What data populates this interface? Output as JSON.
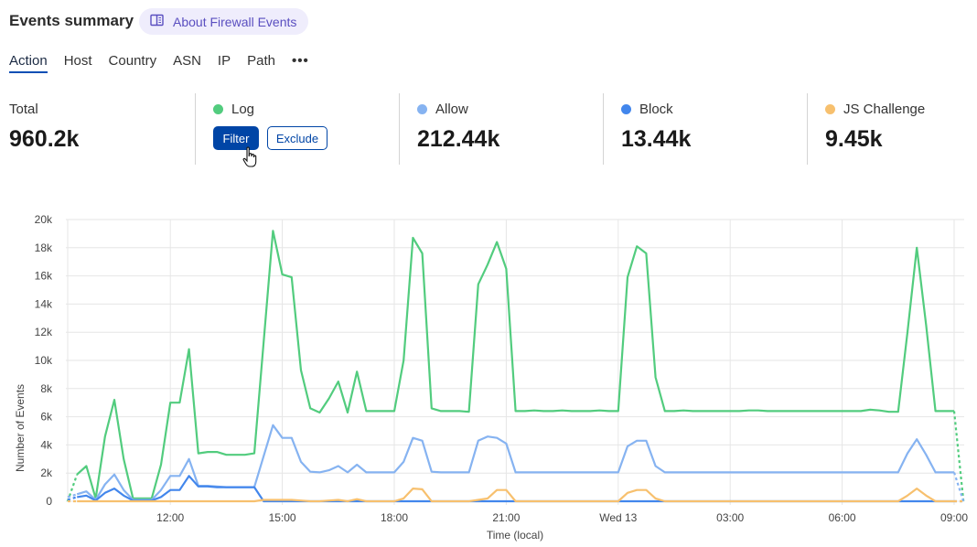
{
  "header": {
    "title": "Events summary",
    "about_label": "About Firewall Events",
    "about_icon": "book-icon"
  },
  "tabs": [
    {
      "label": "Action",
      "active": true
    },
    {
      "label": "Host"
    },
    {
      "label": "Country"
    },
    {
      "label": "ASN"
    },
    {
      "label": "IP"
    },
    {
      "label": "Path"
    },
    {
      "label": "•••"
    }
  ],
  "stats": {
    "total": {
      "label": "Total",
      "value": "960.2k"
    },
    "log": {
      "label": "Log",
      "color": "#52cc7e",
      "filter_label": "Filter",
      "exclude_label": "Exclude"
    },
    "allow": {
      "label": "Allow",
      "value": "212.44k",
      "color": "#86b3f1"
    },
    "block": {
      "label": "Block",
      "value": "13.44k",
      "color": "#4286ec"
    },
    "js": {
      "label": "JS Challenge",
      "value": "9.45k",
      "color": "#f7c06e"
    }
  },
  "chart_data": {
    "type": "line",
    "xlabel": "Time (local)",
    "ylabel": "Number of Events",
    "ylim": [
      0,
      20000
    ],
    "yticks": [
      "0",
      "2k",
      "4k",
      "6k",
      "8k",
      "10k",
      "12k",
      "14k",
      "16k",
      "18k",
      "20k"
    ],
    "xticks": [
      {
        "at": "Tue 12:00",
        "label": "12:00"
      },
      {
        "at": "Tue 15:00",
        "label": "15:00"
      },
      {
        "at": "Tue 18:00",
        "label": "18:00"
      },
      {
        "at": "Tue 21:00",
        "label": "21:00"
      },
      {
        "at": "Wed 00:00",
        "label": "Wed 13"
      },
      {
        "at": "Wed 03:00",
        "label": "03:00"
      },
      {
        "at": "Wed 06:00",
        "label": "06:00"
      },
      {
        "at": "Wed 09:00",
        "label": "09:00"
      }
    ],
    "grid": true,
    "x": [
      "Tue 09:15",
      "Tue 09:30",
      "Tue 09:45",
      "Tue 10:00",
      "Tue 10:15",
      "Tue 10:30",
      "Tue 10:45",
      "Tue 11:00",
      "Tue 11:15",
      "Tue 11:30",
      "Tue 11:45",
      "Tue 12:00",
      "Tue 12:15",
      "Tue 12:30",
      "Tue 12:45",
      "Tue 13:00",
      "Tue 13:15",
      "Tue 13:30",
      "Tue 13:45",
      "Tue 14:00",
      "Tue 14:15",
      "Tue 14:30",
      "Tue 14:45",
      "Tue 15:00",
      "Tue 15:15",
      "Tue 15:30",
      "Tue 15:45",
      "Tue 16:00",
      "Tue 16:15",
      "Tue 16:30",
      "Tue 16:45",
      "Tue 17:00",
      "Tue 17:15",
      "Tue 17:30",
      "Tue 17:45",
      "Tue 18:00",
      "Tue 18:15",
      "Tue 18:30",
      "Tue 18:45",
      "Tue 19:00",
      "Tue 19:15",
      "Tue 19:30",
      "Tue 19:45",
      "Tue 20:00",
      "Tue 20:15",
      "Tue 20:30",
      "Tue 20:45",
      "Tue 21:00",
      "Tue 21:15",
      "Tue 21:30",
      "Tue 21:45",
      "Tue 22:00",
      "Tue 22:15",
      "Tue 22:30",
      "Tue 22:45",
      "Tue 23:00",
      "Tue 23:15",
      "Tue 23:30",
      "Tue 23:45",
      "Wed 00:00",
      "Wed 00:15",
      "Wed 00:30",
      "Wed 00:45",
      "Wed 01:00",
      "Wed 01:15",
      "Wed 01:30",
      "Wed 01:45",
      "Wed 02:00",
      "Wed 02:15",
      "Wed 02:30",
      "Wed 02:45",
      "Wed 03:00",
      "Wed 03:15",
      "Wed 03:30",
      "Wed 03:45",
      "Wed 04:00",
      "Wed 04:15",
      "Wed 04:30",
      "Wed 04:45",
      "Wed 05:00",
      "Wed 05:15",
      "Wed 05:30",
      "Wed 05:45",
      "Wed 06:00",
      "Wed 06:15",
      "Wed 06:30",
      "Wed 06:45",
      "Wed 07:00",
      "Wed 07:15",
      "Wed 07:30",
      "Wed 07:45",
      "Wed 08:00",
      "Wed 08:15",
      "Wed 08:30",
      "Wed 08:45",
      "Wed 09:00",
      "Wed 09:15"
    ],
    "series": [
      {
        "name": "Log",
        "color": "#52cc7e",
        "values": [
          0,
          1900,
          2500,
          200,
          4600,
          7200,
          3000,
          200,
          200,
          200,
          2600,
          7000,
          7000,
          10800,
          3400,
          3500,
          3500,
          3300,
          3300,
          3300,
          3400,
          11300,
          19200,
          16100,
          15900,
          9300,
          6600,
          6300,
          7300,
          8500,
          6300,
          9200,
          6400,
          6400,
          6400,
          6400,
          10000,
          18700,
          17600,
          6600,
          6400,
          6400,
          6400,
          6350,
          15400,
          16800,
          18400,
          16500,
          6400,
          6400,
          6450,
          6400,
          6400,
          6450,
          6400,
          6400,
          6400,
          6450,
          6400,
          6400,
          15900,
          18100,
          17600,
          8800,
          6400,
          6400,
          6450,
          6400,
          6400,
          6400,
          6400,
          6400,
          6400,
          6450,
          6450,
          6400,
          6400,
          6400,
          6400,
          6400,
          6400,
          6400,
          6400,
          6400,
          6400,
          6400,
          6500,
          6450,
          6350,
          6350,
          12000,
          18000,
          12500,
          6400,
          6400,
          6400,
          0
        ]
      },
      {
        "name": "Allow",
        "color": "#86b3f1",
        "values": [
          300,
          500,
          700,
          100,
          1200,
          1900,
          800,
          100,
          100,
          100,
          800,
          1800,
          1800,
          3000,
          1100,
          1100,
          1050,
          1000,
          1000,
          1000,
          1000,
          3200,
          5400,
          4500,
          4500,
          2800,
          2100,
          2050,
          2200,
          2500,
          2050,
          2600,
          2050,
          2050,
          2050,
          2050,
          2800,
          4500,
          4300,
          2100,
          2050,
          2050,
          2050,
          2050,
          4300,
          4600,
          4500,
          4100,
          2050,
          2050,
          2050,
          2050,
          2050,
          2050,
          2050,
          2050,
          2050,
          2050,
          2050,
          2050,
          3900,
          4300,
          4300,
          2500,
          2050,
          2050,
          2050,
          2050,
          2050,
          2050,
          2050,
          2050,
          2050,
          2050,
          2050,
          2050,
          2050,
          2050,
          2050,
          2050,
          2050,
          2050,
          2050,
          2050,
          2050,
          2050,
          2050,
          2050,
          2050,
          2050,
          3400,
          4400,
          3300,
          2050,
          2050,
          2050,
          0
        ]
      },
      {
        "name": "Block",
        "color": "#4286ec",
        "values": [
          100,
          300,
          400,
          50,
          600,
          900,
          400,
          50,
          50,
          50,
          300,
          800,
          800,
          1800,
          1050,
          1050,
          1000,
          1000,
          1000,
          1000,
          1000,
          0,
          0,
          0,
          0,
          0,
          0,
          0,
          0,
          0,
          0,
          0,
          0,
          0,
          0,
          0,
          0,
          0,
          0,
          0,
          0,
          0,
          0,
          0,
          0,
          0,
          0,
          0,
          0,
          0,
          0,
          0,
          0,
          0,
          0,
          0,
          0,
          0,
          0,
          0,
          0,
          0,
          0,
          0,
          0,
          0,
          0,
          0,
          0,
          0,
          0,
          0,
          0,
          0,
          0,
          0,
          0,
          0,
          0,
          0,
          0,
          0,
          0,
          0,
          0,
          0,
          0,
          0,
          0,
          0,
          0,
          0,
          0,
          0,
          0,
          0,
          0
        ]
      },
      {
        "name": "JS Challenge",
        "color": "#f7c06e",
        "values": [
          0,
          0,
          0,
          0,
          0,
          0,
          0,
          0,
          0,
          0,
          0,
          0,
          0,
          0,
          0,
          0,
          0,
          0,
          0,
          0,
          0,
          100,
          100,
          100,
          100,
          50,
          0,
          0,
          50,
          100,
          0,
          150,
          0,
          0,
          0,
          0,
          200,
          900,
          850,
          0,
          0,
          0,
          0,
          0,
          100,
          200,
          800,
          800,
          0,
          0,
          0,
          0,
          0,
          0,
          0,
          0,
          0,
          0,
          0,
          0,
          600,
          800,
          800,
          200,
          0,
          0,
          0,
          0,
          0,
          0,
          0,
          0,
          0,
          0,
          0,
          0,
          0,
          0,
          0,
          0,
          0,
          0,
          0,
          0,
          0,
          0,
          0,
          0,
          0,
          0,
          400,
          900,
          400,
          0,
          0,
          0,
          0
        ]
      }
    ]
  }
}
